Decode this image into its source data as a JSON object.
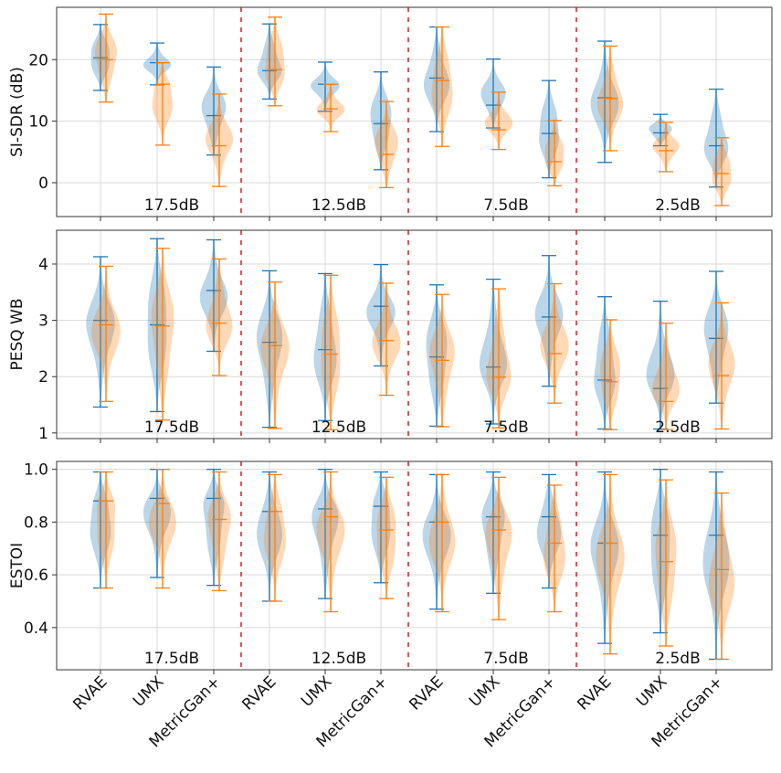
{
  "chart_data": [
    {
      "type": "violin",
      "ylabel": "SI-SDR (dB)",
      "ylim": [
        -5.5,
        28.5
      ],
      "yticks": [
        0,
        10,
        20
      ],
      "groups": [
        "17.5dB",
        "12.5dB",
        "7.5dB",
        "2.5dB"
      ],
      "methods": [
        "RVAE",
        "UMX",
        "MetricGan+"
      ],
      "series": [
        {
          "name": "blue",
          "color": "#1f77b4",
          "stats": [
            [
              15.0,
              20.3,
              25.7
            ],
            [
              15.9,
              19.5,
              22.7
            ],
            [
              4.5,
              10.9,
              18.8
            ],
            [
              13.6,
              18.2,
              25.8
            ],
            [
              11.6,
              16.0,
              19.6
            ],
            [
              2.1,
              9.6,
              18.0
            ],
            [
              8.3,
              17.0,
              25.3
            ],
            [
              8.9,
              12.6,
              20.1
            ],
            [
              0.8,
              8.0,
              16.6
            ],
            [
              3.3,
              13.8,
              23.0
            ],
            [
              6.0,
              8.1,
              11.1
            ],
            [
              -0.7,
              6.0,
              15.2
            ]
          ]
        },
        {
          "name": "orange",
          "color": "#ff7f0e",
          "stats": [
            [
              13.1,
              20.0,
              27.4
            ],
            [
              6.1,
              16.0,
              19.5
            ],
            [
              -0.6,
              6.0,
              14.4
            ],
            [
              12.5,
              18.4,
              26.9
            ],
            [
              8.3,
              12.0,
              16.0
            ],
            [
              -0.8,
              4.6,
              13.2
            ],
            [
              5.9,
              16.6,
              25.3
            ],
            [
              5.4,
              8.6,
              14.7
            ],
            [
              -0.5,
              3.4,
              10.1
            ],
            [
              5.2,
              13.7,
              22.2
            ],
            [
              1.8,
              5.2,
              9.8
            ],
            [
              -3.7,
              1.5,
              7.3
            ]
          ]
        }
      ]
    },
    {
      "type": "violin",
      "ylabel": "PESQ WB",
      "ylim": [
        0.9,
        4.6
      ],
      "yticks": [
        1,
        2,
        3,
        4
      ],
      "groups": [
        "17.5dB",
        "12.5dB",
        "7.5dB",
        "2.5dB"
      ],
      "methods": [
        "RVAE",
        "UMX",
        "MetricGan+"
      ],
      "series": [
        {
          "name": "blue",
          "color": "#1f77b4",
          "stats": [
            [
              1.46,
              3.0,
              4.13
            ],
            [
              1.38,
              2.92,
              4.45
            ],
            [
              2.45,
              3.53,
              4.43
            ],
            [
              1.1,
              2.61,
              3.88
            ],
            [
              1.22,
              2.48,
              3.83
            ],
            [
              2.19,
              3.25,
              3.99
            ],
            [
              1.12,
              2.35,
              3.63
            ],
            [
              1.16,
              2.17,
              3.73
            ],
            [
              1.83,
              3.06,
              4.15
            ],
            [
              1.07,
              1.94,
              3.42
            ],
            [
              1.07,
              1.79,
              3.34
            ],
            [
              1.53,
              2.68,
              3.87
            ]
          ]
        },
        {
          "name": "orange",
          "color": "#ff7f0e",
          "stats": [
            [
              1.56,
              2.92,
              3.96
            ],
            [
              1.23,
              2.9,
              4.28
            ],
            [
              2.02,
              2.95,
              4.09
            ],
            [
              1.08,
              2.55,
              3.68
            ],
            [
              1.06,
              2.4,
              3.8
            ],
            [
              1.67,
              2.64,
              3.66
            ],
            [
              1.11,
              2.29,
              3.46
            ],
            [
              1.09,
              1.99,
              3.56
            ],
            [
              1.53,
              2.41,
              3.65
            ],
            [
              1.06,
              1.91,
              3.01
            ],
            [
              1.06,
              1.56,
              2.95
            ],
            [
              1.07,
              2.02,
              3.31
            ]
          ]
        }
      ]
    },
    {
      "type": "violin",
      "ylabel": "ESTOI",
      "ylim": [
        0.24,
        1.03
      ],
      "yticks": [
        0.4,
        0.6,
        0.8,
        1.0
      ],
      "tick_labels": [
        "0.4",
        "0.6",
        "0.8",
        "1.0"
      ],
      "groups": [
        "17.5dB",
        "12.5dB",
        "7.5dB",
        "2.5dB"
      ],
      "methods": [
        "RVAE",
        "UMX",
        "MetricGan+"
      ],
      "series": [
        {
          "name": "blue",
          "color": "#1f77b4",
          "stats": [
            [
              0.55,
              0.88,
              0.99
            ],
            [
              0.59,
              0.89,
              1.0
            ],
            [
              0.56,
              0.89,
              1.0
            ],
            [
              0.5,
              0.84,
              0.99
            ],
            [
              0.51,
              0.85,
              1.0
            ],
            [
              0.57,
              0.86,
              0.99
            ],
            [
              0.47,
              0.8,
              0.98
            ],
            [
              0.53,
              0.82,
              0.99
            ],
            [
              0.55,
              0.82,
              0.98
            ],
            [
              0.34,
              0.72,
              0.99
            ],
            [
              0.38,
              0.75,
              1.0
            ],
            [
              0.28,
              0.75,
              0.99
            ]
          ]
        },
        {
          "name": "orange",
          "color": "#ff7f0e",
          "stats": [
            [
              0.55,
              0.88,
              0.99
            ],
            [
              0.55,
              0.87,
              1.0
            ],
            [
              0.54,
              0.81,
              0.99
            ],
            [
              0.5,
              0.84,
              0.98
            ],
            [
              0.46,
              0.82,
              0.99
            ],
            [
              0.51,
              0.77,
              0.97
            ],
            [
              0.46,
              0.8,
              0.98
            ],
            [
              0.43,
              0.77,
              0.97
            ],
            [
              0.46,
              0.72,
              0.94
            ],
            [
              0.3,
              0.72,
              0.98
            ],
            [
              0.33,
              0.65,
              0.96
            ],
            [
              0.28,
              0.62,
              0.91
            ]
          ]
        }
      ]
    }
  ]
}
